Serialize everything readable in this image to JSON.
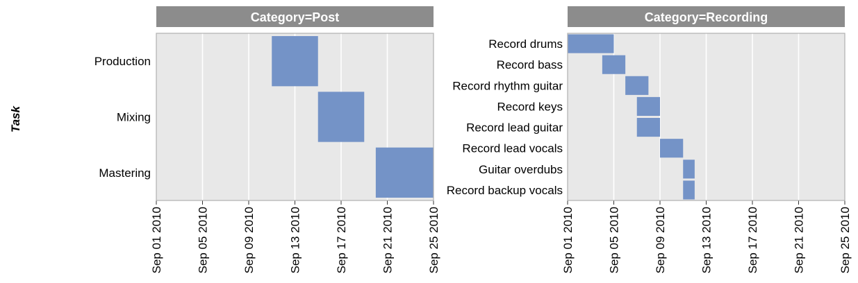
{
  "chart_data": {
    "type": "gantt",
    "ylabel": "Task",
    "x_ticks": [
      "Sep 01 2010",
      "Sep 05 2010",
      "Sep 09 2010",
      "Sep 13 2010",
      "Sep 17 2010",
      "Sep 21 2010",
      "Sep 25 2010"
    ],
    "xlim": [
      "2010-09-01",
      "2010-09-25"
    ],
    "bar_color": "#6f8fc5",
    "panel_background": "#e8e8e8",
    "strip_background": "#8c8c8c",
    "grid": true,
    "facets": [
      {
        "title": "Category=Post",
        "tasks": [
          {
            "task": "Production",
            "start": "2010-09-11",
            "end": "2010-09-15"
          },
          {
            "task": "Mixing",
            "start": "2010-09-15",
            "end": "2010-09-19"
          },
          {
            "task": "Mastering",
            "start": "2010-09-20",
            "end": "2010-09-25"
          }
        ]
      },
      {
        "title": "Category=Recording",
        "tasks": [
          {
            "task": "Record drums",
            "start": "2010-09-01",
            "end": "2010-09-05"
          },
          {
            "task": "Record bass",
            "start": "2010-09-04",
            "end": "2010-09-06"
          },
          {
            "task": "Record rhythm guitar",
            "start": "2010-09-06",
            "end": "2010-09-08"
          },
          {
            "task": "Record keys",
            "start": "2010-09-07",
            "end": "2010-09-09"
          },
          {
            "task": "Record lead guitar",
            "start": "2010-09-07",
            "end": "2010-09-09"
          },
          {
            "task": "Record lead vocals",
            "start": "2010-09-09",
            "end": "2010-09-11"
          },
          {
            "task": "Guitar overdubs",
            "start": "2010-09-11",
            "end": "2010-09-12"
          },
          {
            "task": "Record backup vocals",
            "start": "2010-09-11",
            "end": "2010-09-12"
          }
        ]
      }
    ]
  }
}
